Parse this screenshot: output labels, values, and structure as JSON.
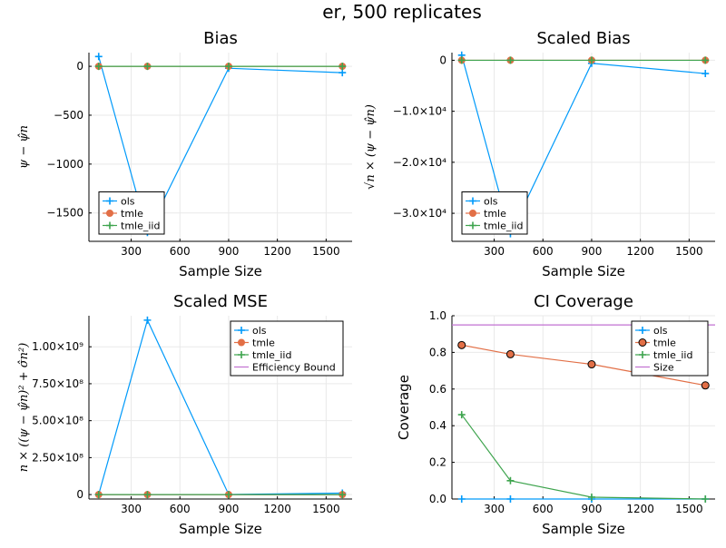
{
  "suptitle": "er, 500 replicates",
  "colors": {
    "ols": "#009AFA",
    "tmle": "#E26F46",
    "tmle_iid": "#3EA44E",
    "bound": "#C271D2"
  },
  "chart_data": [
    {
      "type": "line",
      "title": "Bias",
      "xlabel": "Sample Size",
      "ylabel": "ψ − ψ̂n",
      "x": [
        100,
        400,
        900,
        1600
      ],
      "xticks": [
        300,
        600,
        900,
        1200,
        1500
      ],
      "xtick_labels": [
        "300",
        "600",
        "900",
        "1200",
        "1500"
      ],
      "xlim": [
        40,
        1660
      ],
      "ylim": [
        -1790,
        140
      ],
      "yticks": [
        0,
        -500,
        -1000,
        -1500
      ],
      "ytick_labels": [
        "0",
        "−500",
        "−1000",
        "−1500"
      ],
      "legend_loc": "bottom-left",
      "legend_entries": [
        "ols",
        "tmle",
        "tmle_iid"
      ],
      "series": [
        {
          "name": "ols",
          "values": [
            100,
            -1700,
            -20,
            -65
          ],
          "marker": "plus"
        },
        {
          "name": "tmle",
          "values": [
            0,
            0,
            0,
            0
          ],
          "marker": "circle"
        },
        {
          "name": "tmle_iid",
          "values": [
            0,
            0,
            0,
            0
          ],
          "marker": "plus"
        }
      ],
      "grid": true
    },
    {
      "type": "line",
      "title": "Scaled Bias",
      "xlabel": "Sample Size",
      "ylabel": "√n × (ψ − ψ̂n)",
      "x": [
        100,
        400,
        900,
        1600
      ],
      "xticks": [
        300,
        600,
        900,
        1200,
        1500
      ],
      "xtick_labels": [
        "300",
        "600",
        "900",
        "1200",
        "1500"
      ],
      "xlim": [
        40,
        1660
      ],
      "ylim": [
        -35500,
        1500
      ],
      "yticks": [
        0,
        -10000,
        -20000,
        -30000
      ],
      "ytick_labels": [
        "0",
        "−1.0×10⁴",
        "−2.0×10⁴",
        "−3.0×10⁴"
      ],
      "legend_loc": "bottom-left",
      "legend_entries": [
        "ols",
        "tmle",
        "tmle_iid"
      ],
      "series": [
        {
          "name": "ols",
          "values": [
            1000,
            -34000,
            -600,
            -2600
          ],
          "marker": "plus"
        },
        {
          "name": "tmle",
          "values": [
            0,
            0,
            0,
            0
          ],
          "marker": "circle"
        },
        {
          "name": "tmle_iid",
          "values": [
            0,
            0,
            0,
            0
          ],
          "marker": "plus"
        }
      ],
      "grid": true
    },
    {
      "type": "line",
      "title": "Scaled MSE",
      "xlabel": "Sample Size",
      "ylabel": "n × ((ψ − ψ̂n)² + σ̂n²)",
      "x": [
        100,
        400,
        900,
        1600
      ],
      "xticks": [
        300,
        600,
        900,
        1200,
        1500
      ],
      "xtick_labels": [
        "300",
        "600",
        "900",
        "1200",
        "1500"
      ],
      "xlim": [
        40,
        1660
      ],
      "ylim": [
        -30000000,
        1210000000
      ],
      "yticks": [
        0,
        250000000,
        500000000,
        750000000,
        1000000000
      ],
      "ytick_labels": [
        "0",
        "2.50×10⁸",
        "5.00×10⁸",
        "7.50×10⁸",
        "1.00×10⁹"
      ],
      "legend_loc": "top-right",
      "legend_entries": [
        "ols",
        "tmle",
        "tmle_iid",
        "Efficiency Bound"
      ],
      "series": [
        {
          "name": "ols",
          "values": [
            1000000,
            1180000000,
            1000000,
            10000000
          ],
          "marker": "plus"
        },
        {
          "name": "tmle",
          "values": [
            0,
            0,
            0,
            0
          ],
          "marker": "circle"
        },
        {
          "name": "tmle_iid",
          "values": [
            0,
            0,
            0,
            0
          ],
          "marker": "plus"
        },
        {
          "name": "Efficiency Bound",
          "values": [
            0,
            0,
            0,
            0
          ],
          "marker": "none"
        }
      ],
      "grid": true
    },
    {
      "type": "line",
      "title": "CI Coverage",
      "xlabel": "Sample Size",
      "ylabel": "Coverage",
      "x": [
        100,
        400,
        900,
        1600
      ],
      "xticks": [
        300,
        600,
        900,
        1200,
        1500
      ],
      "xtick_labels": [
        "300",
        "600",
        "900",
        "1200",
        "1500"
      ],
      "xlim": [
        40,
        1660
      ],
      "ylim": [
        0,
        1
      ],
      "yticks": [
        0,
        0.2,
        0.4,
        0.6,
        0.8,
        1.0
      ],
      "ytick_labels": [
        "0.0",
        "0.2",
        "0.4",
        "0.6",
        "0.8",
        "1.0"
      ],
      "legend_loc": "top-right",
      "legend_entries": [
        "ols",
        "tmle",
        "tmle_iid",
        "Size"
      ],
      "series": [
        {
          "name": "ols",
          "values": [
            0,
            0,
            0,
            0
          ],
          "marker": "plus"
        },
        {
          "name": "tmle",
          "values": [
            0.84,
            0.79,
            0.735,
            0.62
          ],
          "marker": "circle-dark"
        },
        {
          "name": "tmle_iid",
          "values": [
            0.46,
            0.1,
            0.01,
            0.0
          ],
          "marker": "plus"
        },
        {
          "name": "Size",
          "values": [
            0.95,
            0.95,
            0.95,
            0.95
          ],
          "marker": "none",
          "span": true
        }
      ],
      "grid": true
    }
  ]
}
